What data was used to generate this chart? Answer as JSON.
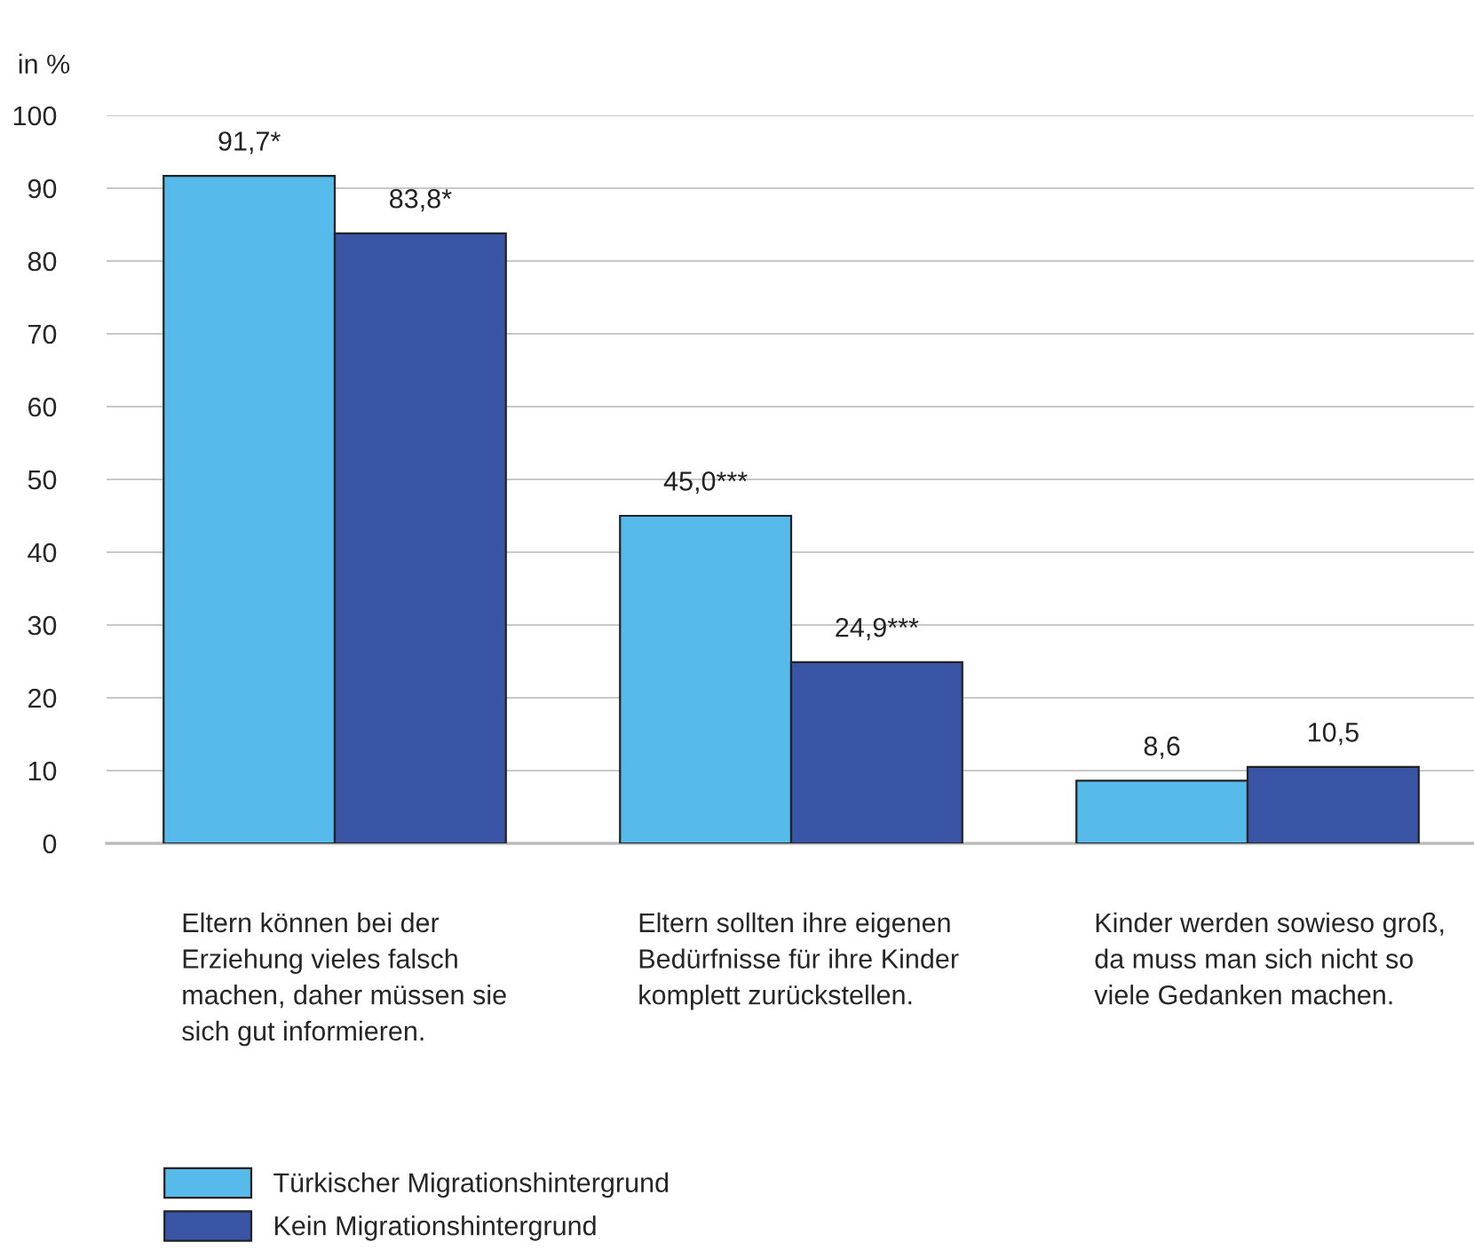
{
  "chart_data": {
    "type": "bar",
    "ylabel": "in %",
    "categories": [
      "Eltern können bei der\nErziehung vieles falsch\nmachen, daher müssen sie\nsich gut informieren.",
      "Eltern sollten ihre eigenen\nBedürfnisse für ihre Kinder\nkomplett zurückstellen.",
      "Kinder werden sowieso groß,\nda muss man sich nicht so\nviele Gedanken machen."
    ],
    "series": [
      {
        "name": "Türkischer Migrationshintergrund",
        "color": "#56bbea",
        "values": [
          91.7,
          45.0,
          8.6
        ],
        "value_labels": [
          "91,7*",
          "45,0***",
          "8,6"
        ]
      },
      {
        "name": "Kein Migrationshintergrund",
        "color": "#3a55a5",
        "values": [
          83.8,
          24.9,
          10.5
        ],
        "value_labels": [
          "83,8*",
          "24,9***",
          "10,5"
        ]
      }
    ],
    "ylim": [
      0,
      100
    ],
    "yticks": [
      0,
      10,
      20,
      30,
      40,
      50,
      60,
      70,
      80,
      90,
      100
    ],
    "grid": "y",
    "legend": "bottom left"
  }
}
